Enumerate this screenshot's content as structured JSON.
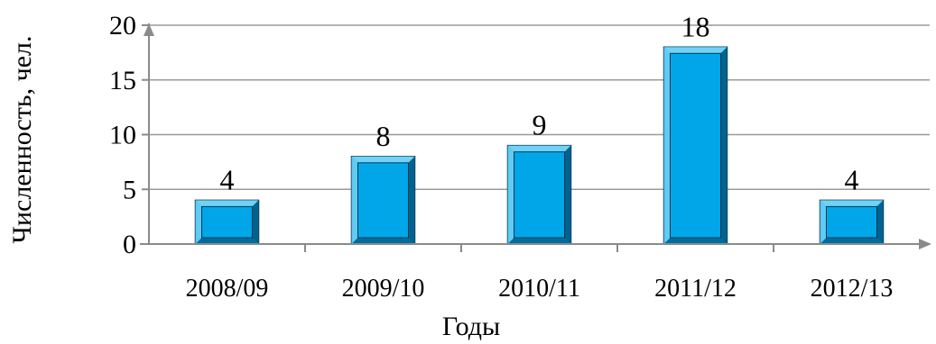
{
  "chart_data": {
    "type": "bar",
    "categories": [
      "2008/09",
      "2009/10",
      "2010/11",
      "2011/12",
      "2012/13"
    ],
    "values": [
      4,
      8,
      9,
      18,
      4
    ],
    "data_labels": [
      "4",
      "8",
      "9",
      "18",
      "4"
    ],
    "ylabel": "Численность, чел.",
    "xlabel": "Годы",
    "ylim": [
      0,
      20
    ],
    "yticks": [
      0,
      5,
      10,
      15,
      20
    ],
    "grid": true,
    "legend": "none",
    "colors": {
      "bar_face": "#00a6e8",
      "bar_bevel_light": "#6fd2f7",
      "bar_bevel_dark": "#00628f",
      "bar_outline": "#0b3a52",
      "grid": "#9a9a9a",
      "axis": "#8a8a8a"
    }
  }
}
